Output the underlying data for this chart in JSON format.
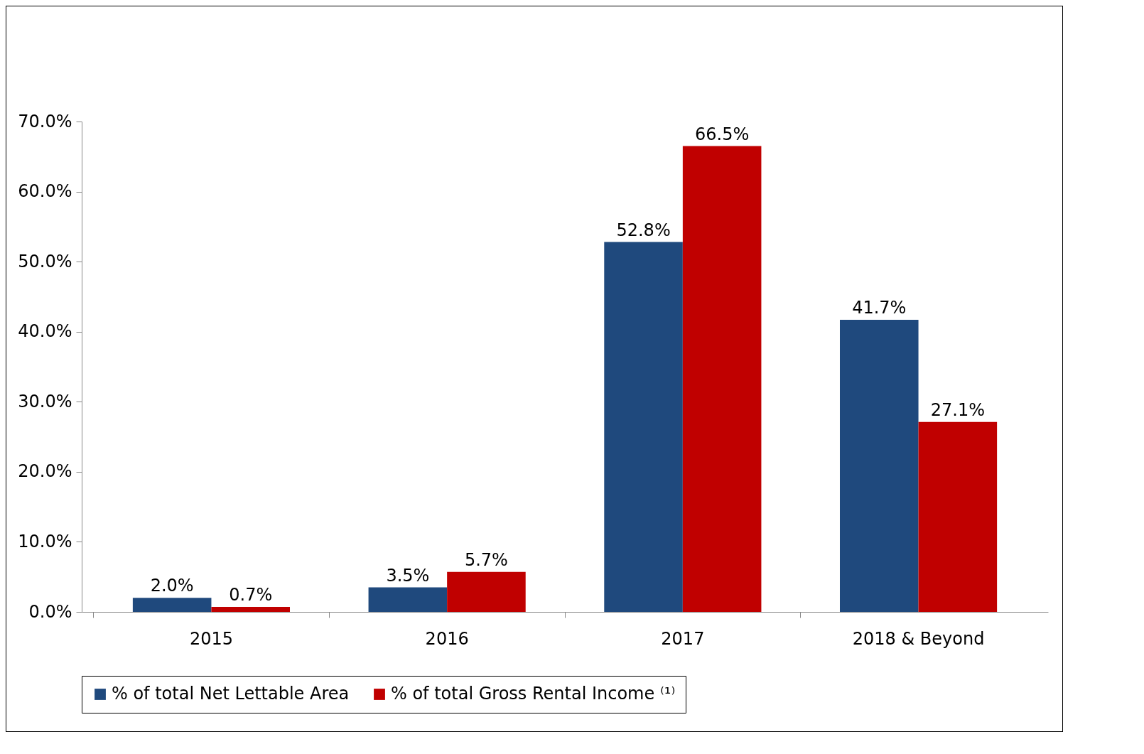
{
  "chart_data": {
    "type": "bar",
    "categories": [
      "2015",
      "2016",
      "2017",
      "2018 & Beyond"
    ],
    "series": [
      {
        "name": "% of total Net Lettable Area",
        "color": "#1f497d",
        "values": [
          2.0,
          3.5,
          52.8,
          41.7
        ],
        "value_labels": [
          "2.0%",
          "3.5%",
          "52.8%",
          "41.7%"
        ]
      },
      {
        "name": "% of total Gross Rental Income ⁽¹⁾",
        "color": "#c00000",
        "values": [
          0.7,
          5.7,
          66.5,
          27.1
        ],
        "value_labels": [
          "0.7%",
          "5.7%",
          "66.5%",
          "27.1%"
        ]
      }
    ],
    "ylim": [
      0,
      70
    ],
    "yticks": [
      {
        "value": 0,
        "label": "0.0%"
      },
      {
        "value": 10,
        "label": "10.0%"
      },
      {
        "value": 20,
        "label": "20.0%"
      },
      {
        "value": 30,
        "label": "30.0%"
      },
      {
        "value": 40,
        "label": "40.0%"
      },
      {
        "value": 50,
        "label": "50.0%"
      },
      {
        "value": 60,
        "label": "60.0%"
      },
      {
        "value": 70,
        "label": "70.0%"
      }
    ],
    "grid": false,
    "legend": "bottom"
  }
}
